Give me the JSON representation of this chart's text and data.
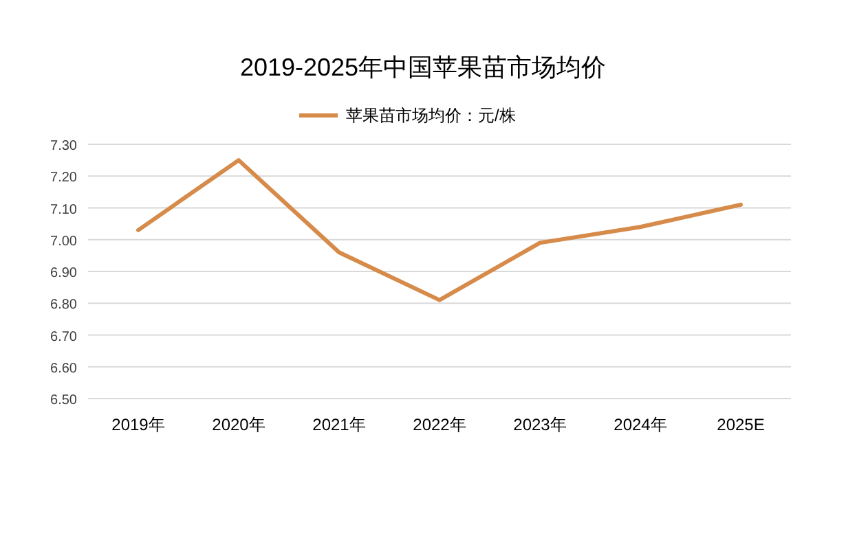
{
  "chart_data": {
    "type": "line",
    "title": "2019-2025年中国苹果苗市场均价",
    "categories": [
      "2019年",
      "2020年",
      "2021年",
      "2022年",
      "2023年",
      "2024年",
      "2025E"
    ],
    "series": [
      {
        "name": "苹果苗市场均价：元/株",
        "color": "#d68b4a",
        "values": [
          7.03,
          7.25,
          6.96,
          6.81,
          6.99,
          7.04,
          7.11
        ]
      }
    ],
    "ylim": [
      6.5,
      7.3
    ],
    "yticks": [
      {
        "value": 6.5,
        "label": "6.50"
      },
      {
        "value": 6.6,
        "label": "6.60"
      },
      {
        "value": 6.7,
        "label": "6.70"
      },
      {
        "value": 6.8,
        "label": "6.80"
      },
      {
        "value": 6.9,
        "label": "6.90"
      },
      {
        "value": 7.0,
        "label": "7.00"
      },
      {
        "value": 7.1,
        "label": "7.10"
      },
      {
        "value": 7.2,
        "label": "7.20"
      },
      {
        "value": 7.3,
        "label": "7.30"
      }
    ],
    "grid": "y",
    "legend": "top",
    "marker": "none",
    "line_style": "solid"
  }
}
